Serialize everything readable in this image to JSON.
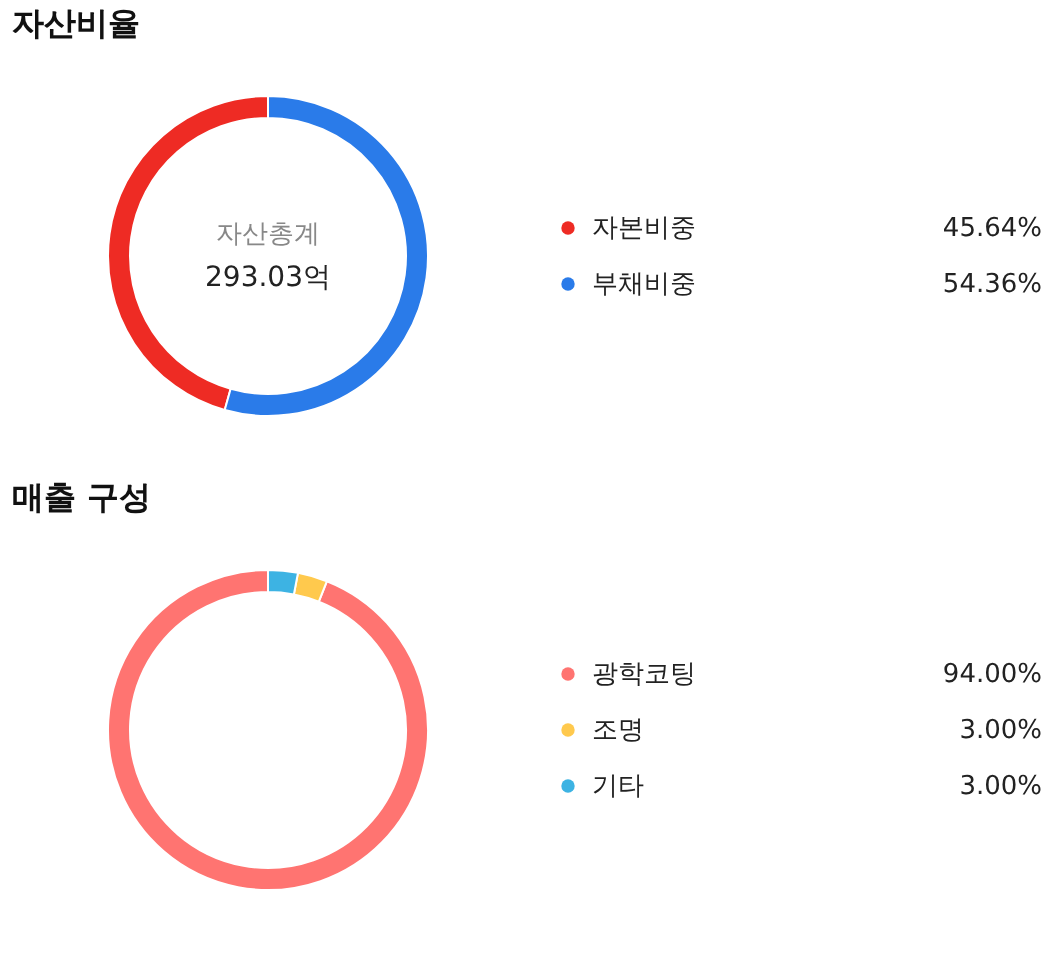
{
  "chart_data": [
    {
      "type": "donut",
      "title": "자산비율",
      "categories": [
        "자본비중",
        "부채비중"
      ],
      "values": [
        45.64,
        54.36
      ],
      "colors": [
        "#ee2b24",
        "#2a7be9"
      ],
      "value_labels": [
        "45.64%",
        "54.36%"
      ],
      "legend": "right",
      "annotations": [
        "자산총계",
        "293.03억"
      ]
    },
    {
      "type": "donut",
      "title": "매출 구성",
      "categories": [
        "광학코팅",
        "조명",
        "기타"
      ],
      "values": [
        94,
        3,
        3
      ],
      "colors": [
        "#ff7471",
        "#ffc94d",
        "#3db3e3"
      ],
      "value_labels": [
        "94.00%",
        "3.00%",
        "3.00%"
      ],
      "legend": "right"
    }
  ]
}
